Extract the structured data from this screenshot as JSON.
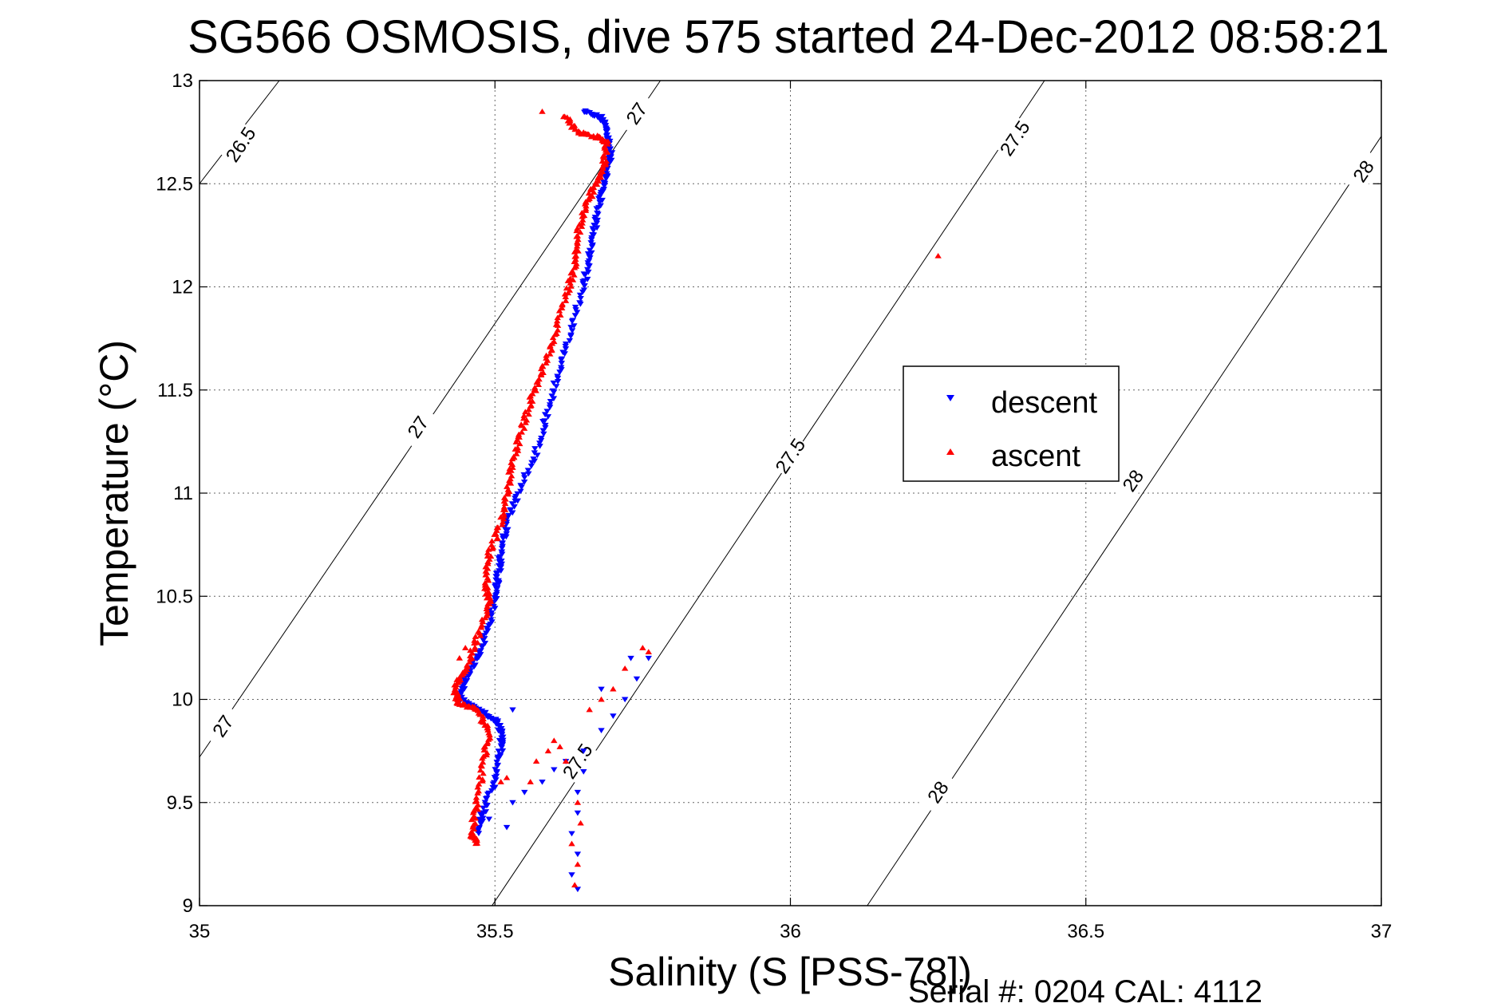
{
  "chart_data": {
    "type": "scatter",
    "title": "SG566 OSMOSIS, dive 575 started 24-Dec-2012 08:58:21",
    "xlabel": "Salinity (S [PSS-78])",
    "ylabel": "Temperature (°C)",
    "xlim": [
      35,
      37
    ],
    "ylim": [
      9,
      13
    ],
    "xticks": [
      "35",
      "35.5",
      "36",
      "36.5",
      "37"
    ],
    "yticks": [
      "9",
      "9.5",
      "10",
      "10.5",
      "11",
      "11.5",
      "12",
      "12.5",
      "13"
    ],
    "grid": true,
    "legend_position": "right-middle",
    "footer": "Serial #: 0204  CAL: 4112",
    "density_contours": [
      {
        "label": "26.5",
        "line": [
          [
            35.0,
            12.5
          ],
          [
            35.135,
            13.0
          ]
        ]
      },
      {
        "label": "27",
        "line": [
          [
            35.0,
            9.72
          ],
          [
            35.78,
            13.0
          ]
        ]
      },
      {
        "label": "27.5",
        "line": [
          [
            35.495,
            9.0
          ],
          [
            36.43,
            13.0
          ]
        ]
      },
      {
        "label": "28",
        "line": [
          [
            36.13,
            9.0
          ],
          [
            37.0,
            12.73
          ]
        ]
      }
    ],
    "contour_labels": [
      {
        "text": "26.5",
        "s": 35.07,
        "t": 12.69
      },
      {
        "text": "27",
        "s": 35.74,
        "t": 12.84
      },
      {
        "text": "27",
        "s": 35.37,
        "t": 11.32
      },
      {
        "text": "27",
        "s": 35.04,
        "t": 9.87
      },
      {
        "text": "27.5",
        "s": 36.38,
        "t": 12.72
      },
      {
        "text": "27.5",
        "s": 36.0,
        "t": 11.18
      },
      {
        "text": "27.5",
        "s": 35.64,
        "t": 9.7
      },
      {
        "text": "28",
        "s": 36.97,
        "t": 12.56
      },
      {
        "text": "28",
        "s": 36.58,
        "t": 11.06
      },
      {
        "text": "28",
        "s": 36.25,
        "t": 9.55
      }
    ],
    "series": [
      {
        "name": "descent",
        "color": "#0000ff",
        "marker": "triangle-down",
        "path": [
          [
            35.65,
            12.85
          ],
          [
            35.68,
            12.82
          ],
          [
            35.69,
            12.75
          ],
          [
            35.695,
            12.65
          ],
          [
            35.69,
            12.55
          ],
          [
            35.68,
            12.45
          ],
          [
            35.67,
            12.3
          ],
          [
            35.66,
            12.15
          ],
          [
            35.65,
            12.0
          ],
          [
            35.63,
            11.8
          ],
          [
            35.61,
            11.6
          ],
          [
            35.59,
            11.4
          ],
          [
            35.57,
            11.2
          ],
          [
            35.54,
            11.0
          ],
          [
            35.52,
            10.85
          ],
          [
            35.51,
            10.7
          ],
          [
            35.505,
            10.6
          ],
          [
            35.5,
            10.5
          ],
          [
            35.49,
            10.35
          ],
          [
            35.47,
            10.2
          ],
          [
            35.45,
            10.1
          ],
          [
            35.44,
            10.0
          ],
          [
            35.47,
            9.95
          ],
          [
            35.5,
            9.9
          ],
          [
            35.51,
            9.85
          ],
          [
            35.51,
            9.75
          ],
          [
            35.5,
            9.6
          ],
          [
            35.48,
            9.45
          ],
          [
            35.47,
            9.35
          ]
        ],
        "scatter": [
          [
            35.53,
            9.5
          ],
          [
            35.55,
            9.55
          ],
          [
            35.58,
            9.6
          ],
          [
            35.6,
            9.66
          ],
          [
            35.62,
            9.7
          ],
          [
            35.65,
            9.75
          ],
          [
            35.68,
            9.85
          ],
          [
            35.7,
            9.92
          ],
          [
            35.72,
            10.0
          ],
          [
            35.74,
            10.1
          ],
          [
            35.76,
            10.2
          ],
          [
            35.73,
            10.2
          ],
          [
            35.68,
            10.05
          ],
          [
            35.65,
            9.65
          ],
          [
            35.64,
            9.55
          ],
          [
            35.64,
            9.45
          ],
          [
            35.63,
            9.35
          ],
          [
            35.64,
            9.25
          ],
          [
            35.63,
            9.15
          ],
          [
            35.64,
            9.08
          ],
          [
            35.52,
            9.38
          ],
          [
            35.49,
            9.42
          ],
          [
            35.53,
            9.95
          ]
        ]
      },
      {
        "name": "ascent",
        "color": "#ff0000",
        "marker": "triangle-up",
        "path": [
          [
            35.62,
            12.83
          ],
          [
            35.64,
            12.75
          ],
          [
            35.67,
            12.73
          ],
          [
            35.69,
            12.7
          ],
          [
            35.685,
            12.6
          ],
          [
            35.67,
            12.5
          ],
          [
            35.655,
            12.4
          ],
          [
            35.64,
            12.25
          ],
          [
            35.635,
            12.1
          ],
          [
            35.62,
            11.95
          ],
          [
            35.6,
            11.75
          ],
          [
            35.58,
            11.6
          ],
          [
            35.56,
            11.45
          ],
          [
            35.545,
            11.3
          ],
          [
            35.53,
            11.15
          ],
          [
            35.52,
            11.0
          ],
          [
            35.51,
            10.85
          ],
          [
            35.49,
            10.7
          ],
          [
            35.485,
            10.55
          ],
          [
            35.49,
            10.45
          ],
          [
            35.47,
            10.3
          ],
          [
            35.45,
            10.15
          ],
          [
            35.43,
            10.05
          ],
          [
            35.44,
            9.98
          ],
          [
            35.47,
            9.95
          ],
          [
            35.49,
            9.85
          ],
          [
            35.48,
            9.7
          ],
          [
            35.47,
            9.5
          ],
          [
            35.46,
            9.35
          ],
          [
            35.47,
            9.3
          ]
        ],
        "scatter": [
          [
            35.58,
            12.85
          ],
          [
            35.59,
            9.75
          ],
          [
            35.6,
            9.8
          ],
          [
            35.61,
            9.77
          ],
          [
            35.57,
            9.7
          ],
          [
            35.56,
            9.6
          ],
          [
            35.62,
            9.7
          ],
          [
            35.64,
            9.5
          ],
          [
            35.645,
            9.4
          ],
          [
            35.63,
            9.3
          ],
          [
            35.64,
            9.2
          ],
          [
            35.635,
            9.1
          ],
          [
            35.66,
            9.95
          ],
          [
            35.68,
            10.0
          ],
          [
            35.7,
            10.05
          ],
          [
            35.72,
            10.15
          ],
          [
            35.75,
            10.25
          ],
          [
            35.76,
            10.23
          ],
          [
            36.25,
            12.15
          ],
          [
            35.45,
            10.25
          ],
          [
            35.44,
            10.2
          ],
          [
            35.51,
            9.6
          ],
          [
            35.52,
            9.62
          ]
        ]
      }
    ]
  }
}
